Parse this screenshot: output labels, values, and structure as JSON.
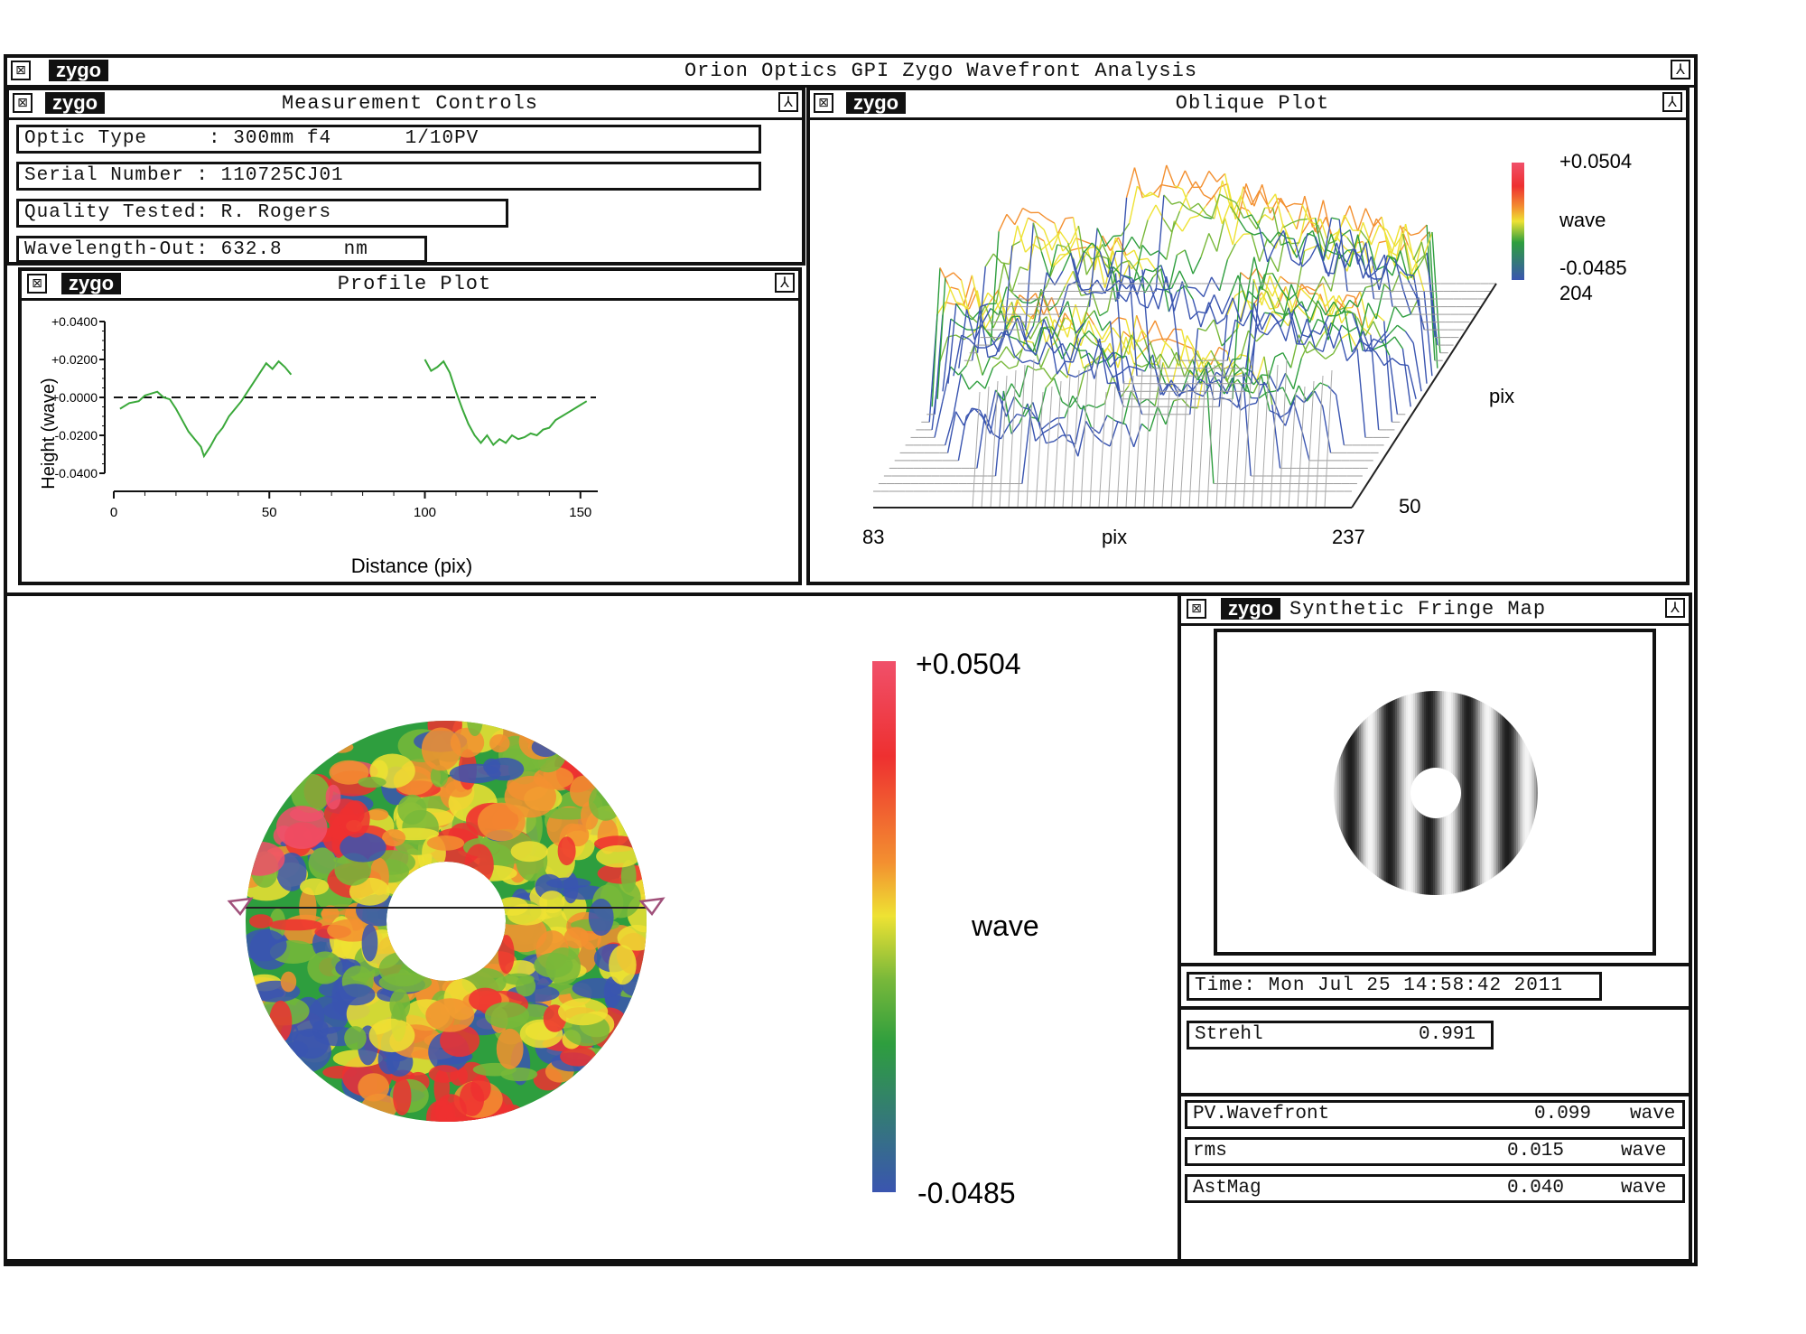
{
  "main_window": {
    "logo": "zygo",
    "title": "Orion Optics GPI Zygo Wavefront Analysis"
  },
  "measurement_controls": {
    "logo": "zygo",
    "title": "Measurement Controls",
    "optic_type": "Optic Type     : 300mm f4      1/10PV",
    "serial_number": "Serial Number : 110725CJ01",
    "quality_tested": "Quality Tested: R. Rogers",
    "wavelength": "Wavelength-Out: 632.8     nm"
  },
  "profile_plot": {
    "logo": "zygo",
    "title": "Profile Plot",
    "chart_data": {
      "type": "line",
      "title": "",
      "xlabel": "Distance (pix)",
      "ylabel": "Height (wave)",
      "xlim": [
        0,
        155
      ],
      "ylim": [
        -0.04,
        0.04
      ],
      "x_ticks": [
        "0",
        "50",
        "100",
        "150"
      ],
      "y_ticks": [
        "+0.0400",
        "+0.0200",
        "+0.0000",
        "-0.0200",
        "-0.0400"
      ],
      "series": [
        {
          "segment": 1,
          "points": [
            [
              2,
              -0.006
            ],
            [
              5,
              -0.003
            ],
            [
              8,
              -0.002
            ],
            [
              10,
              0.001
            ],
            [
              12,
              0.002
            ],
            [
              14,
              0.003
            ],
            [
              16,
              0.0
            ],
            [
              18,
              -0.001
            ],
            [
              20,
              -0.006
            ],
            [
              22,
              -0.012
            ],
            [
              24,
              -0.018
            ],
            [
              26,
              -0.022
            ],
            [
              28,
              -0.026
            ],
            [
              29,
              -0.031
            ],
            [
              31,
              -0.026
            ],
            [
              33,
              -0.02
            ],
            [
              35,
              -0.016
            ],
            [
              37,
              -0.01
            ],
            [
              39,
              -0.006
            ],
            [
              41,
              -0.002
            ],
            [
              43,
              0.003
            ],
            [
              45,
              0.008
            ],
            [
              47,
              0.013
            ],
            [
              49,
              0.018
            ],
            [
              51,
              0.015
            ],
            [
              53,
              0.019
            ],
            [
              55,
              0.016
            ],
            [
              57,
              0.012
            ]
          ]
        },
        {
          "segment": 2,
          "points": [
            [
              100,
              0.02
            ],
            [
              102,
              0.014
            ],
            [
              104,
              0.016
            ],
            [
              106,
              0.019
            ],
            [
              108,
              0.013
            ],
            [
              110,
              0.003
            ],
            [
              112,
              -0.006
            ],
            [
              114,
              -0.014
            ],
            [
              116,
              -0.02
            ],
            [
              118,
              -0.024
            ],
            [
              120,
              -0.02
            ],
            [
              122,
              -0.025
            ],
            [
              124,
              -0.022
            ],
            [
              126,
              -0.024
            ],
            [
              128,
              -0.02
            ],
            [
              130,
              -0.022
            ],
            [
              132,
              -0.021
            ],
            [
              134,
              -0.019
            ],
            [
              136,
              -0.02
            ],
            [
              138,
              -0.017
            ],
            [
              140,
              -0.016
            ],
            [
              142,
              -0.012
            ],
            [
              144,
              -0.01
            ],
            [
              146,
              -0.008
            ],
            [
              148,
              -0.006
            ],
            [
              150,
              -0.004
            ],
            [
              152,
              -0.002
            ]
          ]
        }
      ],
      "reference_line": 0.0
    }
  },
  "oblique_plot": {
    "logo": "zygo",
    "title": "Oblique Plot",
    "scale_max": "+0.0504",
    "scale_label": "wave",
    "scale_min": "-0.0485",
    "x_start": "83",
    "x_label": "pix",
    "x_end": "237",
    "y_end": "204",
    "y_label": "pix",
    "y_start": "50"
  },
  "surface_map": {
    "scale_max": "+0.0504",
    "scale_label": "wave",
    "scale_min": "-0.0485",
    "colors": [
      "#f0506a",
      "#ee3030",
      "#f39030",
      "#eee233",
      "#78b83a",
      "#2e9e3e",
      "#3a55b0"
    ]
  },
  "fringe_map": {
    "logo": "zygo",
    "title": "Synthetic Fringe Map"
  },
  "time": "Time: Mon Jul 25 14:58:42 2011",
  "strehl": {
    "label": "Strehl",
    "value": "0.991"
  },
  "stats": [
    {
      "label": "PV.Wavefront",
      "value": "0.099",
      "unit": "wave"
    },
    {
      "label": "rms",
      "value": "0.015",
      "unit": "wave"
    },
    {
      "label": "AstMag",
      "value": "0.040",
      "unit": "wave"
    }
  ]
}
